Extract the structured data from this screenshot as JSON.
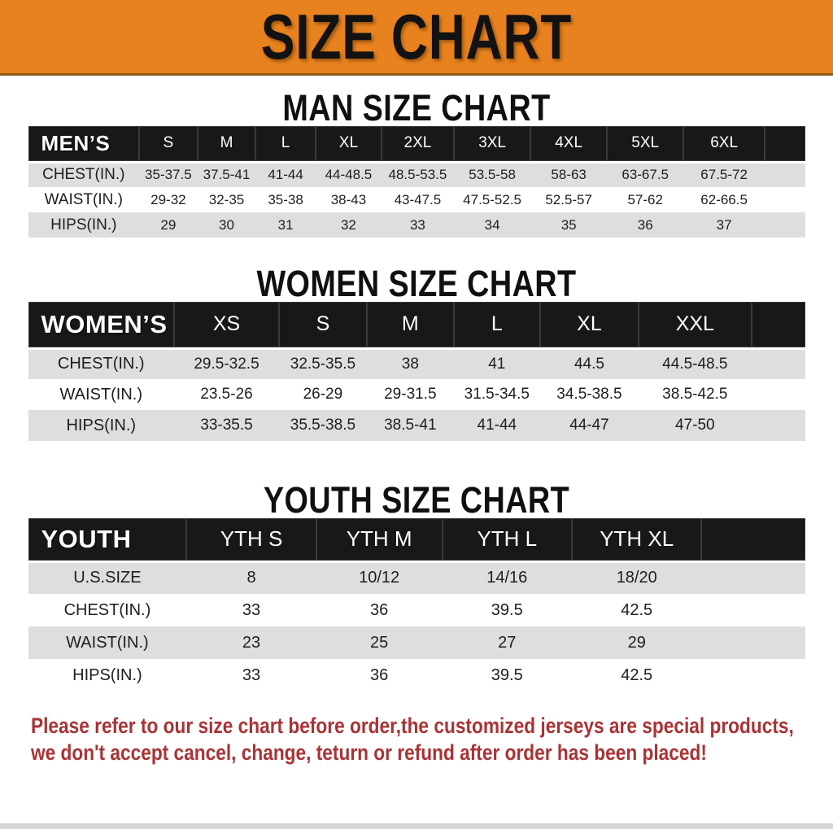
{
  "banner": {
    "title": "SIZE CHART"
  },
  "colors": {
    "banner_bg": "#E8821E",
    "table_header_bg": "#181818",
    "row_alt_bg": "#DEDEDE",
    "row_bg": "#FFFFFF",
    "notice_text": "#A93336",
    "heading_text": "#101010"
  },
  "men": {
    "heading": "MAN SIZE CHART",
    "label": "MEN’S",
    "sizes": [
      "S",
      "M",
      "L",
      "XL",
      "2XL",
      "3XL",
      "4XL",
      "5XL",
      "6XL"
    ],
    "rows": [
      {
        "label": "CHEST(IN.)",
        "values": [
          "35-37.5",
          "37.5-41",
          "41-44",
          "44-48.5",
          "48.5-53.5",
          "53.5-58",
          "58-63",
          "63-67.5",
          "67.5-72"
        ]
      },
      {
        "label": "WAIST(IN.)",
        "values": [
          "29-32",
          "32-35",
          "35-38",
          "38-43",
          "43-47.5",
          "47.5-52.5",
          "52.5-57",
          "57-62",
          "62-66.5"
        ]
      },
      {
        "label": "HIPS(IN.)",
        "values": [
          "29",
          "30",
          "31",
          "32",
          "33",
          "34",
          "35",
          "36",
          "37"
        ]
      }
    ]
  },
  "women": {
    "heading": "WOMEN SIZE CHART",
    "label": "WOMEN’S",
    "sizes": [
      "XS",
      "S",
      "M",
      "L",
      "XL",
      "XXL"
    ],
    "rows": [
      {
        "label": "CHEST(IN.)",
        "values": [
          "29.5-32.5",
          "32.5-35.5",
          "38",
          "41",
          "44.5",
          "44.5-48.5"
        ]
      },
      {
        "label": "WAIST(IN.)",
        "values": [
          "23.5-26",
          "26-29",
          "29-31.5",
          "31.5-34.5",
          "34.5-38.5",
          "38.5-42.5"
        ]
      },
      {
        "label": "HIPS(IN.)",
        "values": [
          "33-35.5",
          "35.5-38.5",
          "38.5-41",
          "41-44",
          "44-47",
          "47-50"
        ]
      }
    ]
  },
  "youth": {
    "heading": "YOUTH SIZE CHART",
    "label": "YOUTH",
    "sizes": [
      "YTH S",
      "YTH M",
      "YTH L",
      "YTH XL"
    ],
    "rows": [
      {
        "label": "U.S.SIZE",
        "values": [
          "8",
          "10/12",
          "14/16",
          "18/20"
        ]
      },
      {
        "label": "CHEST(IN.)",
        "values": [
          "33",
          "36",
          "39.5",
          "42.5"
        ]
      },
      {
        "label": "WAIST(IN.)",
        "values": [
          "23",
          "25",
          "27",
          "29"
        ]
      },
      {
        "label": "HIPS(IN.)",
        "values": [
          "33",
          "36",
          "39.5",
          "42.5"
        ]
      }
    ]
  },
  "notice": {
    "line1": "Please refer to our size chart before order,the customized jerseys are special products,",
    "line2": "we don't accept cancel, change, teturn or refund after order has been placed!"
  }
}
